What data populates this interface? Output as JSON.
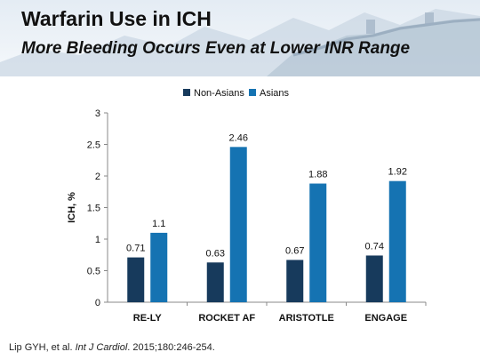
{
  "slide": {
    "title": "Warfarin Use in ICH",
    "subtitle": "More Bleeding Occurs Even at Lower INR Range",
    "citation": {
      "authors": "Lip GYH, et al. ",
      "journal": "Int J Cardiol",
      "details": ". 2015;180:246-254."
    }
  },
  "colors": {
    "non_asians": "#173a5c",
    "asians": "#1573b2",
    "axis": "#888888",
    "text": "#111111"
  },
  "chart_data": {
    "type": "bar",
    "categories": [
      "RE-LY",
      "ROCKET AF",
      "ARISTOTLE",
      "ENGAGE"
    ],
    "series": [
      {
        "name": "Non-Asians",
        "values": [
          0.71,
          0.63,
          0.67,
          0.74
        ],
        "labels": [
          "0.71",
          "0.63",
          "0.67",
          "0.74"
        ]
      },
      {
        "name": "Asians",
        "values": [
          1.1,
          2.46,
          1.88,
          1.92
        ],
        "labels": [
          "1.1",
          "2.46",
          "1.88",
          "1.92"
        ]
      }
    ],
    "ylabel": "ICH, %",
    "ylim": [
      0,
      3
    ],
    "yticks": [
      "0",
      "0.5",
      "1",
      "1.5",
      "2",
      "2.5",
      "3"
    ],
    "legend": "top-center",
    "grid": false
  }
}
